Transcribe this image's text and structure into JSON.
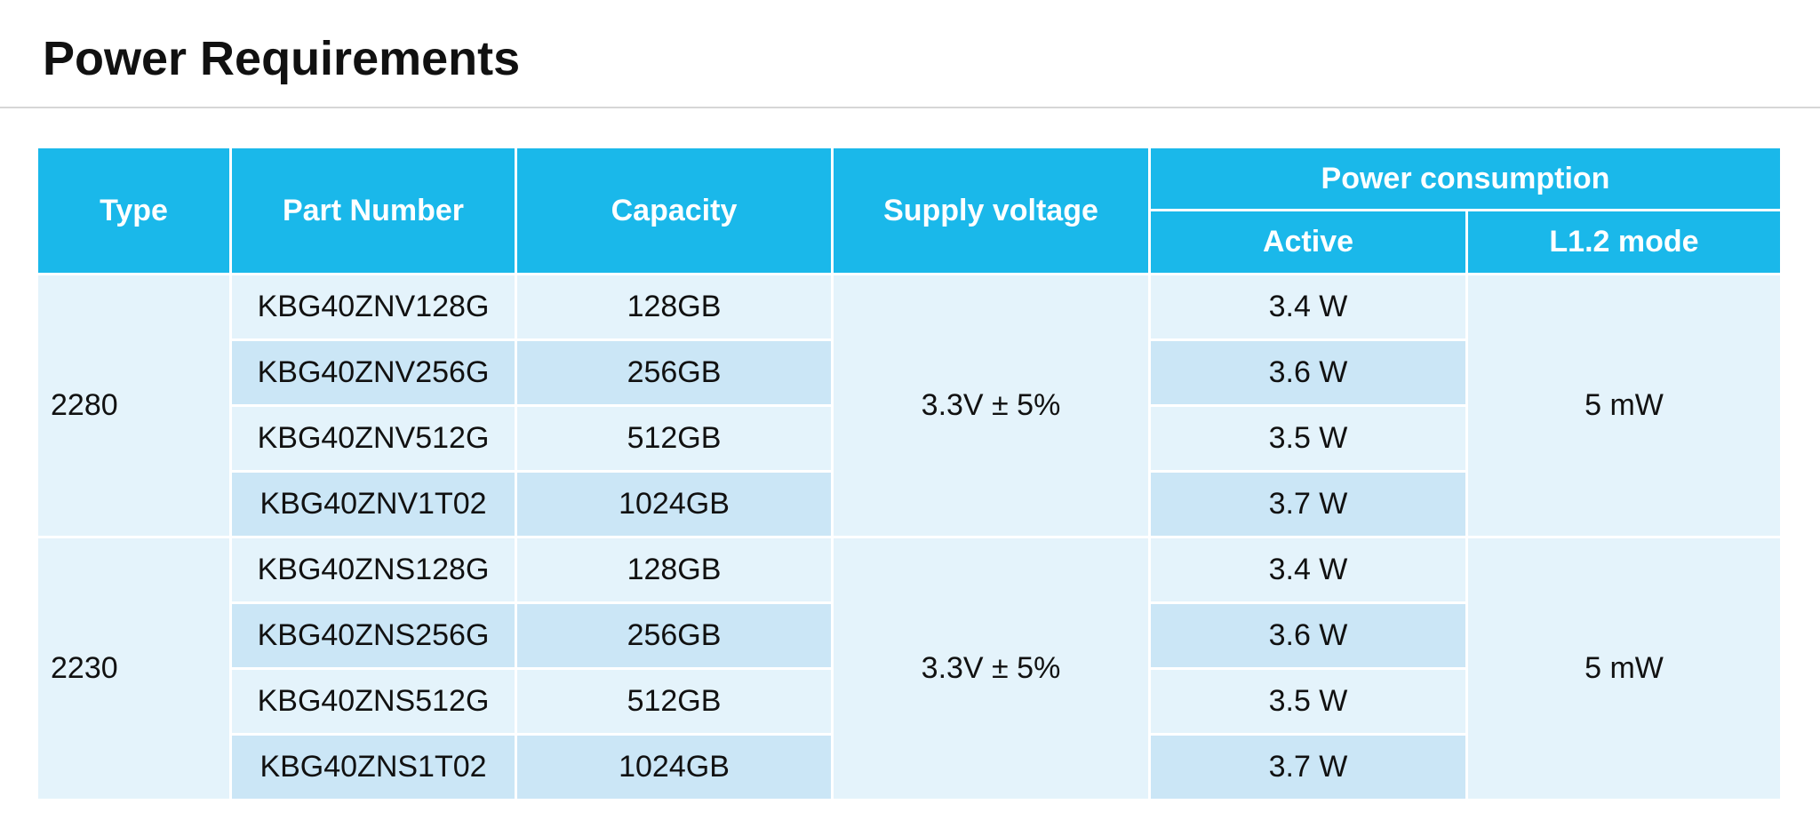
{
  "page": {
    "title": "Power Requirements"
  },
  "table": {
    "headers": {
      "type": "Type",
      "part_number": "Part Number",
      "capacity": "Capacity",
      "supply_voltage": "Supply voltage",
      "power_consumption": "Power consumption",
      "active": "Active",
      "l12_mode": "L1.2 mode"
    },
    "groups": [
      {
        "type": "2280",
        "supply_voltage": "3.3V ± 5%",
        "l12_mode": "5 mW",
        "rows": [
          {
            "part_number": "KBG40ZNV128G",
            "capacity": "128GB",
            "active": "3.4 W"
          },
          {
            "part_number": "KBG40ZNV256G",
            "capacity": "256GB",
            "active": "3.6 W"
          },
          {
            "part_number": "KBG40ZNV512G",
            "capacity": "512GB",
            "active": "3.5 W"
          },
          {
            "part_number": "KBG40ZNV1T02",
            "capacity": "1024GB",
            "active": "3.7 W"
          }
        ]
      },
      {
        "type": "2230",
        "supply_voltage": "3.3V ± 5%",
        "l12_mode": "5 mW",
        "rows": [
          {
            "part_number": "KBG40ZNS128G",
            "capacity": "128GB",
            "active": "3.4 W"
          },
          {
            "part_number": "KBG40ZNS256G",
            "capacity": "256GB",
            "active": "3.6 W"
          },
          {
            "part_number": "KBG40ZNS512G",
            "capacity": "512GB",
            "active": "3.5 W"
          },
          {
            "part_number": "KBG40ZNS1T02",
            "capacity": "1024GB",
            "active": "3.7 W"
          }
        ]
      }
    ]
  },
  "colors": {
    "header_bg": "#1ab8ea",
    "row_light": "#e4f3fb",
    "row_mid": "#cbe6f6"
  }
}
